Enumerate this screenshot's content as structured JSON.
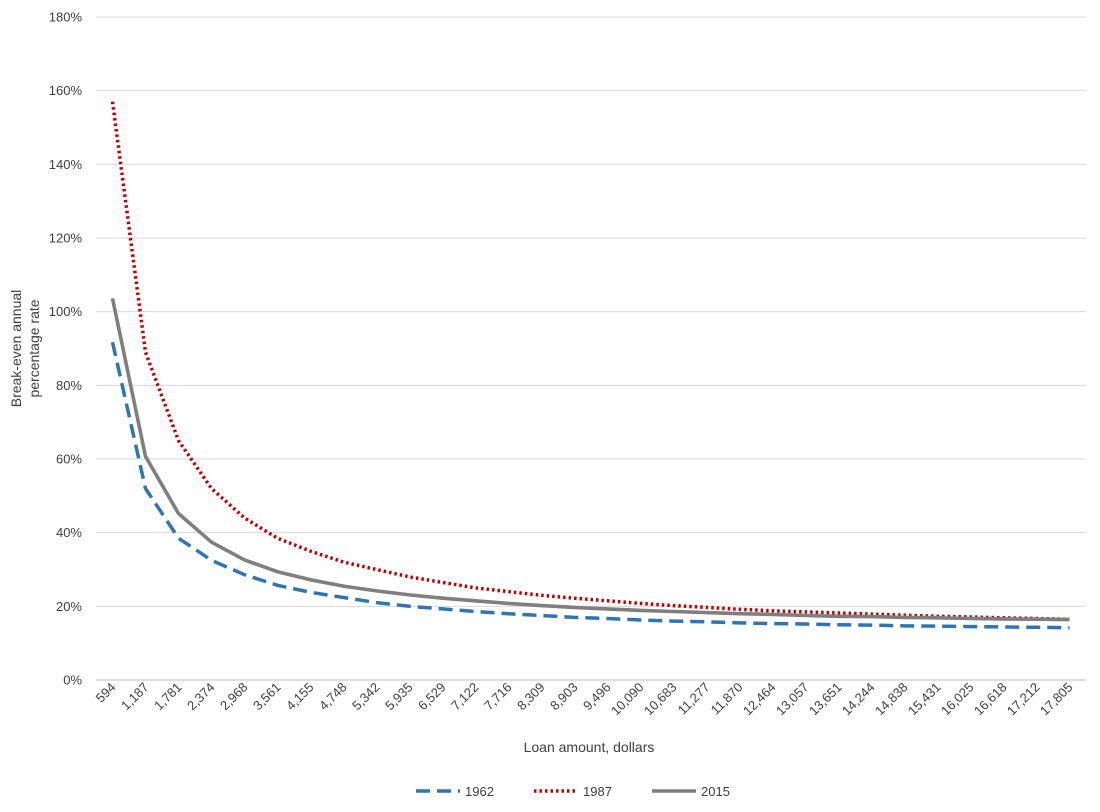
{
  "chart_data": {
    "type": "line",
    "title": "",
    "xlabel": "Loan amount, dollars",
    "ylabel": "Break-even annual percentage rate",
    "ylabel_lines": [
      "Break-even annual",
      "percentage rate"
    ],
    "ylim": [
      0,
      180
    ],
    "yticks": [
      "0%",
      "20%",
      "40%",
      "60%",
      "80%",
      "100%",
      "120%",
      "140%",
      "160%",
      "180%"
    ],
    "grid": true,
    "legend_position": "bottom",
    "x": [
      "594",
      "1,187",
      "1,781",
      "2,374",
      "2,968",
      "3,561",
      "4,155",
      "4,748",
      "5,342",
      "5,935",
      "6,529",
      "7,122",
      "7,716",
      "8,309",
      "8,903",
      "9,496",
      "10,090",
      "10,683",
      "11,277",
      "11,870",
      "12,464",
      "13,057",
      "13,651",
      "14,244",
      "14,838",
      "15,431",
      "16,025",
      "16,618",
      "17,212",
      "17,805"
    ],
    "series": [
      {
        "name": "1962",
        "color": "#2E75B6",
        "style": "dashed",
        "values": [
          91.7,
          52,
          38.5,
          32.5,
          28.6,
          25.7,
          23.8,
          22.4,
          21.0,
          20.0,
          19.3,
          18.6,
          18.0,
          17.5,
          17.0,
          16.7,
          16.3,
          16.0,
          15.8,
          15.5,
          15.3,
          15.2,
          15.0,
          14.9,
          14.7,
          14.6,
          14.5,
          14.4,
          14.3,
          14.2
        ]
      },
      {
        "name": "1987",
        "color": "#C00000",
        "style": "dotted",
        "values": [
          157,
          89,
          65,
          52,
          44,
          38.5,
          35,
          32,
          30,
          28,
          26.5,
          25,
          24,
          23,
          22.2,
          21.5,
          20.8,
          20.2,
          19.7,
          19.2,
          18.8,
          18.5,
          18.2,
          17.9,
          17.6,
          17.3,
          17.1,
          16.9,
          16.7,
          16.5
        ]
      },
      {
        "name": "2015",
        "color": "#7F7F7F",
        "style": "solid",
        "values": [
          103.6,
          60.7,
          45.2,
          37.4,
          32.6,
          29.4,
          27.2,
          25.5,
          24.2,
          23.1,
          22.2,
          21.5,
          20.8,
          20.2,
          19.7,
          19.3,
          18.9,
          18.6,
          18.3,
          18.0,
          17.8,
          17.5,
          17.3,
          17.2,
          17.0,
          16.9,
          16.7,
          16.6,
          16.5,
          16.4
        ]
      }
    ]
  }
}
